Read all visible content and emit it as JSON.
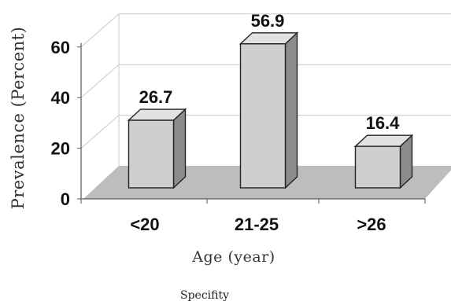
{
  "chart_data": {
    "type": "bar",
    "categories": [
      "<20",
      "21-25",
      ">26"
    ],
    "values": [
      26.7,
      56.9,
      16.4
    ],
    "data_labels": [
      "26.7",
      "56.9",
      "16.4"
    ],
    "xlabel": "Age (year)",
    "ylabel": "Prevalence (Percent)",
    "ylim": [
      0,
      60
    ],
    "yticks": [
      {
        "value": 0,
        "label": "0"
      },
      {
        "value": 20,
        "label": "20"
      },
      {
        "value": 40,
        "label": "40"
      },
      {
        "value": 60,
        "label": "60"
      }
    ],
    "three_d": true,
    "grid": true,
    "legend": "none",
    "colors": {
      "bar_front": "#cfcfcf",
      "bar_side": "#8c8c8c",
      "bar_top": "#e2e2e2",
      "floor": "#bdbdbd",
      "grid": "#c8c8c8"
    }
  },
  "caption": "Specifity"
}
